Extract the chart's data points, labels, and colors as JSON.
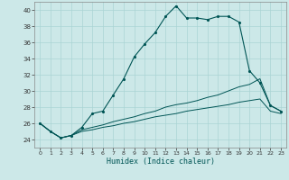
{
  "xlabel": "Humidex (Indice chaleur)",
  "xlim": [
    -0.5,
    23.5
  ],
  "ylim": [
    23,
    41
  ],
  "yticks": [
    24,
    26,
    28,
    30,
    32,
    34,
    36,
    38,
    40
  ],
  "xticks": [
    0,
    1,
    2,
    3,
    4,
    5,
    6,
    7,
    8,
    9,
    10,
    11,
    12,
    13,
    14,
    15,
    16,
    17,
    18,
    19,
    20,
    21,
    22,
    23
  ],
  "bg_color": "#cce8e8",
  "grid_color": "#aad4d4",
  "line_color": "#005555",
  "main_y": [
    26.0,
    25.0,
    24.2,
    24.5,
    25.5,
    27.2,
    27.5,
    29.5,
    31.5,
    34.2,
    35.8,
    37.2,
    39.2,
    40.5,
    39.0,
    39.0,
    38.8,
    39.2,
    39.2,
    38.5,
    32.5,
    31.0,
    28.2,
    27.5
  ],
  "line2_y": [
    26.0,
    25.0,
    24.2,
    24.5,
    25.2,
    25.5,
    25.8,
    26.2,
    26.5,
    26.8,
    27.2,
    27.5,
    28.0,
    28.3,
    28.5,
    28.8,
    29.2,
    29.5,
    30.0,
    30.5,
    30.8,
    31.5,
    28.2,
    27.5
  ],
  "line3_y": [
    26.0,
    25.0,
    24.2,
    24.5,
    25.0,
    25.2,
    25.5,
    25.7,
    26.0,
    26.2,
    26.5,
    26.8,
    27.0,
    27.2,
    27.5,
    27.7,
    27.9,
    28.1,
    28.3,
    28.6,
    28.8,
    29.0,
    27.5,
    27.2
  ]
}
